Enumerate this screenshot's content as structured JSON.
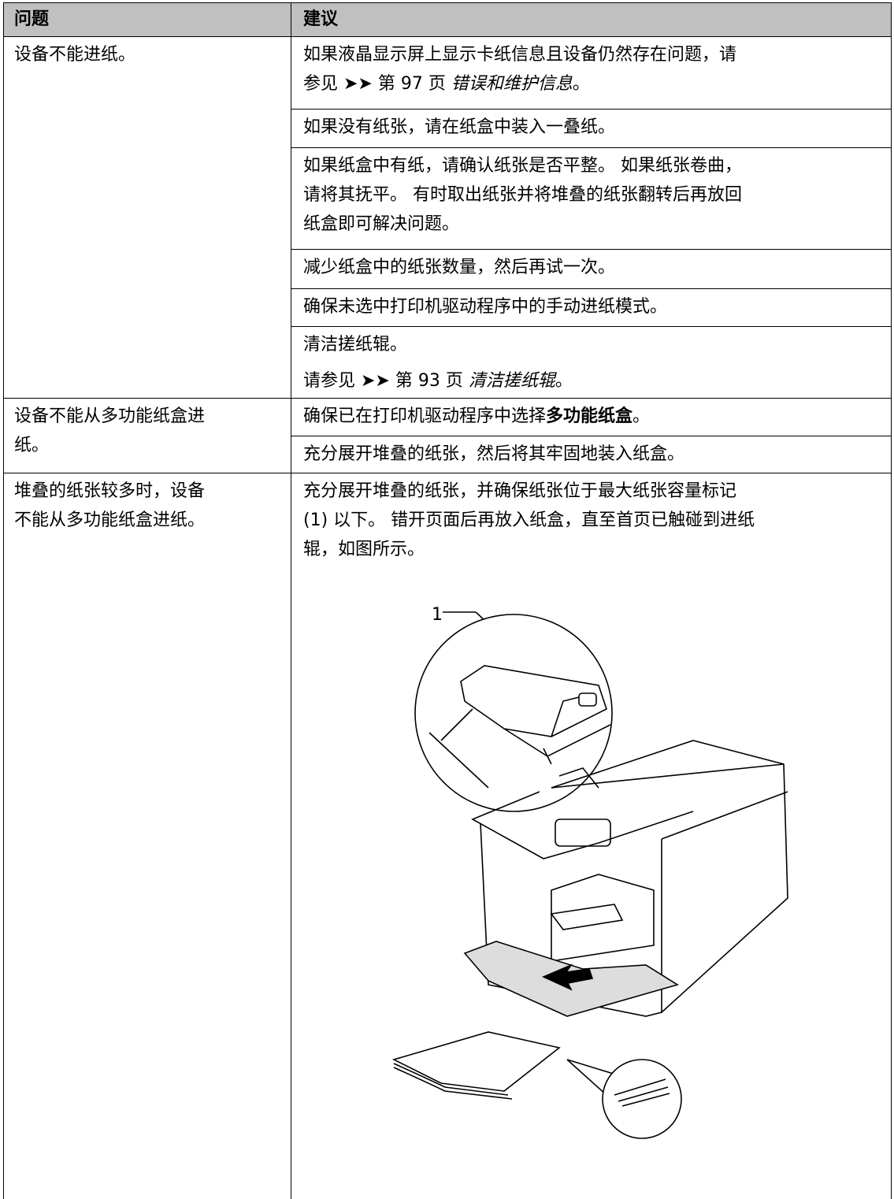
{
  "table": {
    "header": [
      "问题",
      "建议"
    ],
    "rows": [
      {
        "problem": [
          "设备不能进纸。"
        ],
        "suggestions": [
          [
            [
              {
                "text": "如果液晶显示屏上显示卡纸信息且设备仍然存在问题，请"
              }
            ],
            [
              {
                "text": "参见 ➤➤ 第 97 页 "
              },
              {
                "text": "错误和维护信息",
                "style": "italic"
              },
              {
                "text": "。"
              }
            ]
          ],
          [
            [
              {
                "text": "如果没有纸张，请在纸盒中装入一叠纸。"
              }
            ]
          ],
          [
            [
              {
                "text": "如果纸盒中有纸，请确认纸张是否平整。 如果纸张卷曲，"
              }
            ],
            [
              {
                "text": "请将其抚平。 有时取出纸张并将堆叠的纸张翻转后再放回"
              }
            ],
            [
              {
                "text": "纸盒即可解决问题。"
              }
            ]
          ],
          [
            [
              {
                "text": "减少纸盒中的纸张数量，然后再试一次。"
              }
            ]
          ],
          [
            [
              {
                "text": "确保未选中打印机驱动程序中的手动进纸模式。"
              }
            ]
          ],
          [
            [
              {
                "text": "清洁搓纸辊。"
              }
            ],
            [
              {
                "text": "请参见 ➤➤ 第 93 页 "
              },
              {
                "text": "清洁搓纸辊",
                "style": "italic"
              },
              {
                "text": "。"
              }
            ]
          ]
        ]
      },
      {
        "problem": [
          "设备不能从多功能纸盒进",
          "纸。"
        ],
        "suggestions": [
          [
            [
              {
                "text": "确保已在打印机驱动程序中选择"
              },
              {
                "text": "多功能纸盒",
                "style": "bold"
              },
              {
                "text": "。"
              }
            ]
          ],
          [
            [
              {
                "text": "充分展开堆叠的纸张，然后将其牢固地装入纸盒。"
              }
            ]
          ]
        ]
      },
      {
        "problem": [
          "堆叠的纸张较多时，设备",
          "不能从多功能纸盒进纸。"
        ],
        "suggestions": [
          [
            [
              {
                "text": "充分展开堆叠的纸张，并确保纸张位于最大纸张容量标记"
              }
            ],
            [
              {
                "text": "(1) 以下。 错开页面后再放入纸盒，直至首页已触碰到进纸"
              }
            ],
            [
              {
                "text": "辊，如图所示。"
              }
            ]
          ]
        ],
        "figure_callout": "1"
      }
    ]
  }
}
